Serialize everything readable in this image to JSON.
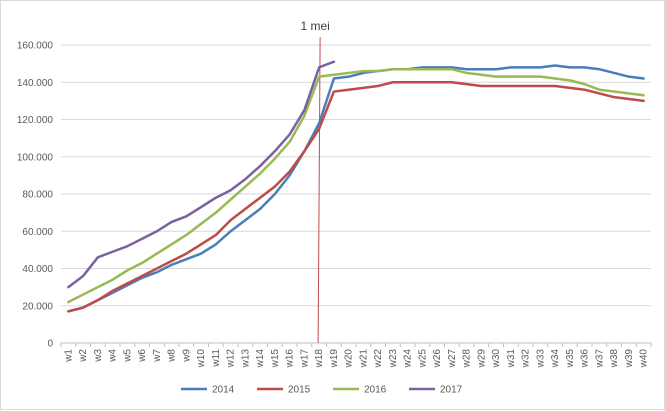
{
  "chart_data": {
    "type": "line",
    "title": "",
    "xlabel": "",
    "ylabel": "",
    "ylim": [
      0,
      160000
    ],
    "yticks": [
      0,
      20000,
      40000,
      60000,
      80000,
      100000,
      120000,
      140000,
      160000
    ],
    "ytick_labels": [
      "0",
      "20.000",
      "40.000",
      "60.000",
      "80.000",
      "100.000",
      "120.000",
      "140.000",
      "160.000"
    ],
    "grid": true,
    "legend": "bottom",
    "categories": [
      "w1",
      "w2",
      "w3",
      "w4",
      "w5",
      "w6",
      "w7",
      "w8",
      "w9",
      "w10",
      "w11",
      "w12",
      "w13",
      "w14",
      "w15",
      "w16",
      "w17",
      "w18",
      "w19",
      "w20",
      "w21",
      "w22",
      "w23",
      "w24",
      "w25",
      "w26",
      "w27",
      "w28",
      "w29",
      "w30",
      "w31",
      "w32",
      "w33",
      "w34",
      "w35",
      "w36",
      "w37",
      "w38",
      "w39",
      "w40"
    ],
    "annotation": {
      "label": "1 mei",
      "category": "w18",
      "color": "#c0504d"
    },
    "series": [
      {
        "name": "2014",
        "color": "#4a7ebb",
        "values": [
          17000,
          19000,
          23000,
          27000,
          31000,
          35000,
          38000,
          42000,
          45000,
          48000,
          53000,
          60000,
          66000,
          72000,
          80000,
          90000,
          103000,
          118000,
          142000,
          143000,
          145000,
          146000,
          147000,
          147000,
          148000,
          148000,
          148000,
          147000,
          147000,
          147000,
          148000,
          148000,
          148000,
          149000,
          148000,
          148000,
          147000,
          145000,
          143000,
          142000
        ]
      },
      {
        "name": "2015",
        "color": "#be4b48",
        "values": [
          17000,
          19000,
          23000,
          28000,
          32000,
          36000,
          40000,
          44000,
          48000,
          53000,
          58000,
          66000,
          72000,
          78000,
          84000,
          92000,
          103000,
          115000,
          135000,
          136000,
          137000,
          138000,
          140000,
          140000,
          140000,
          140000,
          140000,
          139000,
          138000,
          138000,
          138000,
          138000,
          138000,
          138000,
          137000,
          136000,
          134000,
          132000,
          131000,
          130000
        ]
      },
      {
        "name": "2016",
        "color": "#98b954",
        "values": [
          22000,
          26000,
          30000,
          34000,
          39000,
          43000,
          48000,
          53000,
          58000,
          64000,
          70000,
          77000,
          84000,
          91000,
          99000,
          108000,
          122000,
          143000,
          144000,
          145000,
          146000,
          146000,
          147000,
          147000,
          147000,
          147000,
          147000,
          145000,
          144000,
          143000,
          143000,
          143000,
          143000,
          142000,
          141000,
          139000,
          136000,
          135000,
          134000,
          133000
        ]
      },
      {
        "name": "2017",
        "color": "#7d60a0",
        "values": [
          30000,
          36000,
          46000,
          49000,
          52000,
          56000,
          60000,
          65000,
          68000,
          73000,
          78000,
          82000,
          88000,
          95000,
          103000,
          112000,
          125000,
          148000,
          151000,
          null,
          null,
          null,
          null,
          null,
          null,
          null,
          null,
          null,
          null,
          null,
          null,
          null,
          null,
          null,
          null,
          null,
          null,
          null,
          null,
          null
        ]
      }
    ]
  }
}
